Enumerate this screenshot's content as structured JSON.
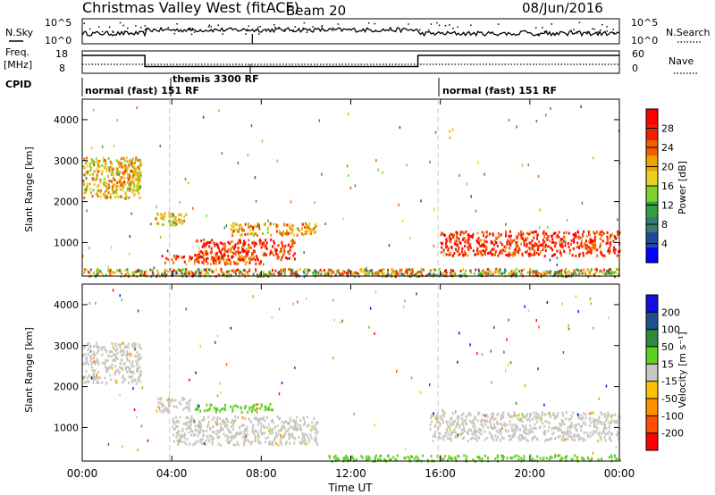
{
  "header": {
    "title": "Christmas Valley West (fitACF)",
    "beam": "Beam 20",
    "date": "08/Jun/2016"
  },
  "noise_panel": {
    "left_label": "N.Sky",
    "right_label": "N.Search",
    "left_ticks": [
      "10^5",
      "10^0"
    ],
    "right_ticks": [
      "10^5",
      "10^0"
    ]
  },
  "freq_panel": {
    "left_label_1": "Freq.",
    "left_label_2": "[MHz]",
    "right_label": "Nave",
    "left_ticks": [
      "18",
      "8"
    ],
    "right_ticks": [
      "60",
      "0"
    ]
  },
  "cpid": {
    "label": "CPID",
    "segments": [
      "normal (fast) 151 RF",
      "themis 3300 RF",
      "normal (fast) 151 RF"
    ]
  },
  "power_panel": {
    "ylabel": "Slant Range [km]",
    "yticks": [
      "4000",
      "3000",
      "2000",
      "1000"
    ],
    "colorbar_label": "Power [dB]",
    "colorbar_ticks": [
      "28",
      "24",
      "20",
      "16",
      "12",
      "8",
      "4"
    ]
  },
  "velocity_panel": {
    "ylabel": "Slant Range [km]",
    "yticks": [
      "4000",
      "3000",
      "2000",
      "1000"
    ],
    "colorbar_label": "Velocity [m s⁻¹]",
    "colorbar_ticks": [
      "200",
      "100",
      "50",
      "15",
      "-15",
      "-50",
      "-100",
      "-200"
    ]
  },
  "xaxis": {
    "label": "Time UT",
    "ticks": [
      "00:00",
      "04:00",
      "08:00",
      "12:00",
      "16:00",
      "20:00",
      "00:00"
    ]
  },
  "colors": {
    "power_scale": [
      "#0000ff",
      "#1e4a9a",
      "#3b7a6e",
      "#2fa040",
      "#7fd02a",
      "#e8d020",
      "#f0a000",
      "#f06000",
      "#f02000",
      "#ff0000"
    ],
    "velocity_scale": [
      "#ff0000",
      "#ff5000",
      "#ff9000",
      "#ffc000",
      "#c8c8c0",
      "#60d020",
      "#2f8a3a",
      "#1e5090",
      "#1010e0"
    ]
  },
  "chart_data": {
    "type": "heatmap",
    "x_range_hours": [
      0,
      24
    ],
    "y_range_km": [
      180,
      4500
    ],
    "mode_changes_hours": [
      3.9,
      15.9
    ],
    "frequency_MHz": [
      {
        "from": 0,
        "to": 2.8,
        "value": 16
      },
      {
        "from": 2.8,
        "to": 15,
        "value": 11
      },
      {
        "from": 15,
        "to": 24,
        "value": 16
      }
    ],
    "power_echo_regions": [
      {
        "t0": 0.0,
        "t1": 2.6,
        "r0": 2100,
        "r1": 3100,
        "dB": 18
      },
      {
        "t0": 1.5,
        "t1": 2.6,
        "r0": 2400,
        "r1": 3000,
        "dB": 20
      },
      {
        "t0": 3.2,
        "t1": 4.6,
        "r0": 1450,
        "r1": 1750,
        "dB": 18
      },
      {
        "t0": 5.0,
        "t1": 9.5,
        "r0": 600,
        "r1": 1100,
        "dB": 26
      },
      {
        "t0": 3.5,
        "t1": 8.0,
        "r0": 500,
        "r1": 700,
        "dB": 24
      },
      {
        "t0": 6.5,
        "t1": 10.5,
        "r0": 1200,
        "r1": 1500,
        "dB": 20
      },
      {
        "t0": 16.0,
        "t1": 24.0,
        "r0": 700,
        "r1": 1300,
        "dB": 26
      }
    ],
    "velocity_echo_regions": [
      {
        "t0": 0.0,
        "t1": 2.6,
        "r0": 2100,
        "r1": 3100,
        "v": 0
      },
      {
        "t0": 3.2,
        "t1": 4.8,
        "r0": 1400,
        "r1": 1750,
        "v": 0
      },
      {
        "t0": 5.0,
        "t1": 8.5,
        "r0": 1400,
        "r1": 1600,
        "v": 40
      },
      {
        "t0": 4.0,
        "t1": 10.5,
        "r0": 600,
        "r1": 1300,
        "v": 0
      },
      {
        "t0": 15.5,
        "t1": 24.0,
        "r0": 700,
        "r1": 1400,
        "v": 0
      },
      {
        "t0": 11.0,
        "t1": 24.0,
        "r0": 200,
        "r1": 350,
        "v": 40
      }
    ]
  }
}
